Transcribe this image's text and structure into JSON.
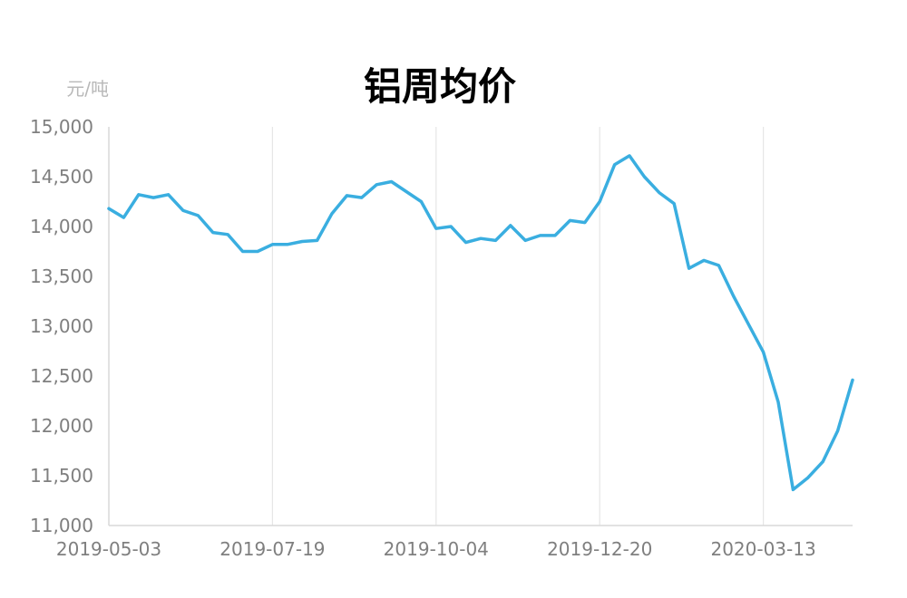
{
  "chart_data": {
    "type": "line",
    "title": "铝周均价",
    "ylabel": "元/吨",
    "xlabel": "",
    "ylim": [
      11000,
      15000
    ],
    "y_ticks": [
      "11,000",
      "11,500",
      "12,000",
      "12,500",
      "13,000",
      "13,500",
      "14,000",
      "14,500",
      "15,000"
    ],
    "x_ticks": [
      "2019-05-03",
      "2019-07-19",
      "2019-10-04",
      "2019-12-20",
      "2020-03-13"
    ],
    "grid": "vertical",
    "line_color": "#3aaee0",
    "series": [
      {
        "values": [
          14180,
          14090,
          14320,
          14290,
          14320,
          14160,
          14110,
          13940,
          13920,
          13750,
          13750,
          13820,
          13820,
          13850,
          13860,
          14130,
          14310,
          14290,
          14420,
          14450,
          14350,
          14250,
          13980,
          14000,
          13840,
          13880,
          13860,
          14010,
          13860,
          13910,
          13910,
          14060,
          14040,
          14250,
          14620,
          14710,
          14500,
          14340,
          14230,
          13580,
          13660,
          13610,
          13300,
          13020,
          12740,
          12240,
          11360,
          11480,
          11640,
          11950,
          12460
        ]
      }
    ]
  }
}
